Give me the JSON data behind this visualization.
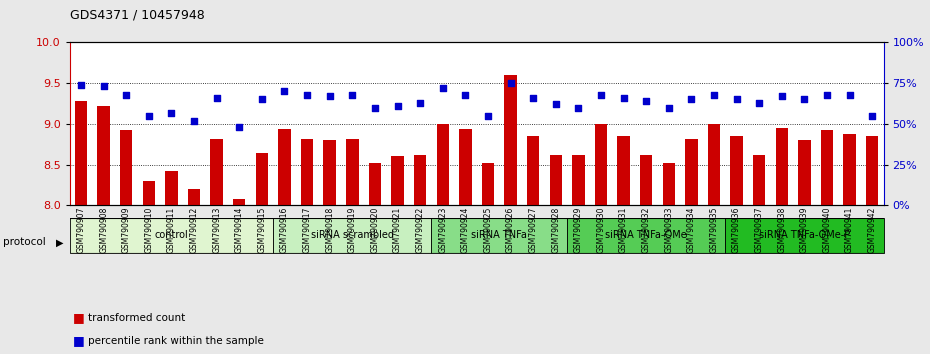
{
  "title": "GDS4371 / 10457948",
  "samples": [
    "GSM790907",
    "GSM790908",
    "GSM790909",
    "GSM790910",
    "GSM790911",
    "GSM790912",
    "GSM790913",
    "GSM790914",
    "GSM790915",
    "GSM790916",
    "GSM790917",
    "GSM790918",
    "GSM790919",
    "GSM790920",
    "GSM790921",
    "GSM790922",
    "GSM790923",
    "GSM790924",
    "GSM790925",
    "GSM790926",
    "GSM790927",
    "GSM790928",
    "GSM790929",
    "GSM790930",
    "GSM790931",
    "GSM790932",
    "GSM790933",
    "GSM790934",
    "GSM790935",
    "GSM790936",
    "GSM790937",
    "GSM790938",
    "GSM790939",
    "GSM790940",
    "GSM790941",
    "GSM790942"
  ],
  "bar_values": [
    9.28,
    9.22,
    8.92,
    8.3,
    8.42,
    8.2,
    8.82,
    8.08,
    8.64,
    8.94,
    8.82,
    8.8,
    8.82,
    8.52,
    8.6,
    8.62,
    9.0,
    8.94,
    8.52,
    9.6,
    8.85,
    8.62,
    8.62,
    9.0,
    8.85,
    8.62,
    8.52,
    8.82,
    9.0,
    8.85,
    8.62,
    8.95,
    8.8,
    8.92,
    8.88,
    8.85
  ],
  "blue_values": [
    74,
    73,
    68,
    55,
    57,
    52,
    66,
    48,
    65,
    70,
    68,
    67,
    68,
    60,
    61,
    63,
    72,
    68,
    55,
    75,
    66,
    62,
    60,
    68,
    66,
    64,
    60,
    65,
    68,
    65,
    63,
    67,
    65,
    68,
    68,
    55
  ],
  "groups": [
    {
      "label": "control",
      "start": 0,
      "end": 9,
      "color": "#e0f5d0"
    },
    {
      "label": "siRNA scrambled",
      "start": 9,
      "end": 16,
      "color": "#c8f0c0"
    },
    {
      "label": "siRNA TNFa",
      "start": 16,
      "end": 22,
      "color": "#88dd88"
    },
    {
      "label": "siRNA TNFa-OMe",
      "start": 22,
      "end": 29,
      "color": "#55cc55"
    },
    {
      "label": "siRNA TNFa-OMe-P",
      "start": 29,
      "end": 36,
      "color": "#22bb22"
    }
  ],
  "ylim_left": [
    8.0,
    10.0
  ],
  "ylim_right": [
    0,
    100
  ],
  "yticks_left": [
    8.0,
    8.5,
    9.0,
    9.5,
    10.0
  ],
  "yticks_right": [
    0,
    25,
    50,
    75,
    100
  ],
  "bar_color": "#cc0000",
  "dot_color": "#0000cc",
  "fig_bg": "#e8e8e8",
  "plot_bg": "#ffffff",
  "protocol_label": "protocol"
}
